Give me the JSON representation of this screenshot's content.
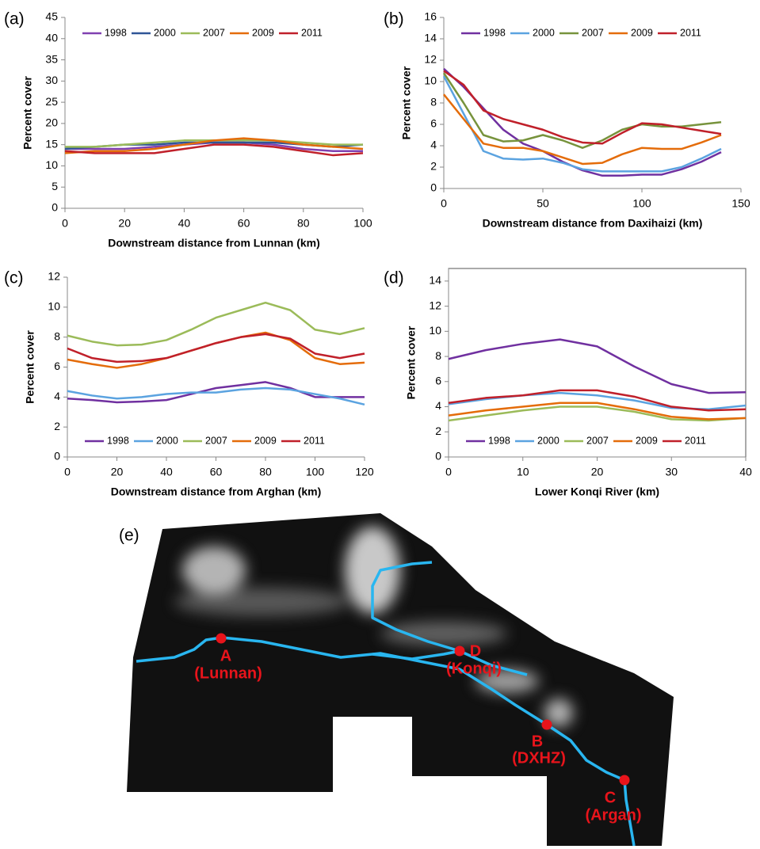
{
  "chart_data": [
    {
      "type": "line",
      "panel": "(a)",
      "x_label": "Downstream distance from Lunnan (km)",
      "y_label": "Percent cover",
      "x": [
        0,
        10,
        20,
        30,
        40,
        50,
        60,
        70,
        80,
        90,
        100
      ],
      "series": [
        {
          "name": "1998",
          "color": "#8040b0",
          "values": [
            14,
            14,
            14,
            14.5,
            15,
            15.5,
            15.5,
            15,
            14,
            13.5,
            13.5
          ]
        },
        {
          "name": "2000",
          "color": "#2f5597",
          "values": [
            14,
            14.5,
            15,
            15,
            15.5,
            15.5,
            15.5,
            15.5,
            15,
            14.5,
            15
          ]
        },
        {
          "name": "2007",
          "color": "#9bbb59",
          "values": [
            14.5,
            14.5,
            15,
            15.5,
            16,
            16,
            16,
            16,
            15.5,
            15,
            15
          ]
        },
        {
          "name": "2009",
          "color": "#e46c0a",
          "values": [
            13,
            13.5,
            13.5,
            14,
            15,
            16,
            16.5,
            16,
            15,
            14.5,
            14
          ]
        },
        {
          "name": "2011",
          "color": "#c0202a",
          "values": [
            13.5,
            13,
            13,
            13,
            14,
            15,
            15,
            14.5,
            13.5,
            12.5,
            13
          ]
        }
      ],
      "xlim": [
        0,
        100
      ],
      "xticks": [
        0,
        20,
        40,
        60,
        80,
        100
      ],
      "ylim": [
        0,
        45
      ],
      "yticks": [
        0,
        5,
        10,
        15,
        20,
        25,
        30,
        35,
        40,
        45
      ],
      "legend": "top",
      "frame": false,
      "grid": false
    },
    {
      "type": "line",
      "panel": "(b)",
      "x_label": "Downstream distance from Daxihaizi (km)",
      "y_label": "Percent cover",
      "x": [
        0,
        10,
        20,
        30,
        40,
        50,
        60,
        70,
        80,
        90,
        100,
        110,
        120,
        130,
        140
      ],
      "series": [
        {
          "name": "1998",
          "color": "#7030a0",
          "values": [
            11.2,
            9.5,
            7.5,
            5.5,
            4.2,
            3.5,
            2.5,
            1.7,
            1.2,
            1.2,
            1.3,
            1.3,
            1.8,
            2.5,
            3.4
          ]
        },
        {
          "name": "2000",
          "color": "#5ba3e0",
          "values": [
            10.5,
            7,
            3.5,
            2.8,
            2.7,
            2.8,
            2.4,
            1.8,
            1.6,
            1.6,
            1.6,
            1.6,
            2,
            2.8,
            3.7
          ]
        },
        {
          "name": "2007",
          "color": "#77933c",
          "values": [
            10.8,
            8,
            5,
            4.4,
            4.5,
            5,
            4.5,
            3.8,
            4.5,
            5.5,
            6,
            5.8,
            5.8,
            6,
            6.2
          ]
        },
        {
          "name": "2009",
          "color": "#e46c0a",
          "values": [
            8.8,
            6.5,
            4.2,
            3.8,
            3.8,
            3.5,
            2.9,
            2.3,
            2.4,
            3.2,
            3.8,
            3.7,
            3.7,
            4.3,
            5
          ]
        },
        {
          "name": "2011",
          "color": "#c0202a",
          "values": [
            11,
            9.7,
            7.3,
            6.5,
            6,
            5.5,
            4.8,
            4.3,
            4.2,
            5.2,
            6.1,
            6,
            5.7,
            5.4,
            5.1
          ]
        }
      ],
      "xlim": [
        0,
        150
      ],
      "xticks": [
        0,
        50,
        100,
        150
      ],
      "ylim": [
        0,
        16
      ],
      "yticks": [
        0,
        2,
        4,
        6,
        8,
        10,
        12,
        14,
        16
      ],
      "legend": "top",
      "frame": false,
      "grid": false
    },
    {
      "type": "line",
      "panel": "(c)",
      "x_label": "Downstream distance from Arghan (km)",
      "y_label": "Percent cover",
      "x": [
        0,
        10,
        20,
        30,
        40,
        50,
        60,
        70,
        80,
        90,
        100,
        110,
        120
      ],
      "series": [
        {
          "name": "1998",
          "color": "#7030a0",
          "values": [
            3.9,
            3.8,
            3.65,
            3.7,
            3.8,
            4.2,
            4.6,
            4.8,
            5.0,
            4.6,
            4.0,
            4.0,
            4.0
          ]
        },
        {
          "name": "2000",
          "color": "#5ba3e0",
          "values": [
            4.4,
            4.1,
            3.9,
            4.0,
            4.2,
            4.3,
            4.3,
            4.5,
            4.6,
            4.5,
            4.2,
            3.9,
            3.5
          ]
        },
        {
          "name": "2007",
          "color": "#9bbb59",
          "values": [
            8.1,
            7.7,
            7.45,
            7.5,
            7.8,
            8.5,
            9.3,
            9.8,
            10.3,
            9.8,
            8.5,
            8.2,
            8.6
          ]
        },
        {
          "name": "2009",
          "color": "#e46c0a",
          "values": [
            6.5,
            6.2,
            5.95,
            6.2,
            6.6,
            7.1,
            7.6,
            8.0,
            8.3,
            7.8,
            6.6,
            6.2,
            6.3
          ]
        },
        {
          "name": "2011",
          "color": "#c0202a",
          "values": [
            7.25,
            6.6,
            6.35,
            6.4,
            6.6,
            7.1,
            7.6,
            8.0,
            8.2,
            7.9,
            6.9,
            6.6,
            6.9
          ]
        }
      ],
      "xlim": [
        0,
        120
      ],
      "xticks": [
        0,
        20,
        40,
        60,
        80,
        100,
        120
      ],
      "ylim": [
        0,
        12
      ],
      "yticks": [
        0,
        2,
        4,
        6,
        8,
        10,
        12
      ],
      "legend": "bottom",
      "frame": false,
      "grid": false
    },
    {
      "type": "line",
      "panel": "(d)",
      "x_label": "Lower Konqi River (km)",
      "y_label": "Percent cover",
      "x": [
        0,
        5,
        10,
        15,
        20,
        25,
        30,
        35,
        40
      ],
      "series": [
        {
          "name": "1998",
          "color": "#7030a0",
          "values": [
            7.8,
            8.5,
            9.0,
            9.35,
            8.8,
            7.2,
            5.8,
            5.1,
            5.15
          ]
        },
        {
          "name": "2000",
          "color": "#5ba3e0",
          "values": [
            4.2,
            4.6,
            4.9,
            5.1,
            4.9,
            4.5,
            3.9,
            3.8,
            4.1
          ]
        },
        {
          "name": "2007",
          "color": "#9bbb59",
          "values": [
            2.9,
            3.3,
            3.7,
            4.0,
            4.0,
            3.6,
            3.0,
            2.9,
            3.1
          ]
        },
        {
          "name": "2009",
          "color": "#e46c0a",
          "values": [
            3.3,
            3.7,
            4.0,
            4.3,
            4.3,
            3.8,
            3.2,
            3.0,
            3.1
          ]
        },
        {
          "name": "2011",
          "color": "#c0202a",
          "values": [
            4.3,
            4.7,
            4.9,
            5.3,
            5.3,
            4.8,
            4.0,
            3.7,
            3.8
          ]
        }
      ],
      "xlim": [
        0,
        40
      ],
      "xticks": [
        0,
        10,
        20,
        30,
        40
      ],
      "ylim": [
        0,
        15
      ],
      "yticks": [
        0,
        2,
        4,
        6,
        8,
        10,
        12,
        14
      ],
      "legend": "bottom",
      "frame": true,
      "grid": false
    }
  ],
  "map": {
    "panel": "(e)",
    "sites": [
      {
        "letter": "A",
        "name": "(Lunnan)"
      },
      {
        "letter": "B",
        "name": "(DXHZ)"
      },
      {
        "letter": "C",
        "name": "(Argan)"
      },
      {
        "letter": "D",
        "name": "(Konqi)"
      }
    ]
  }
}
